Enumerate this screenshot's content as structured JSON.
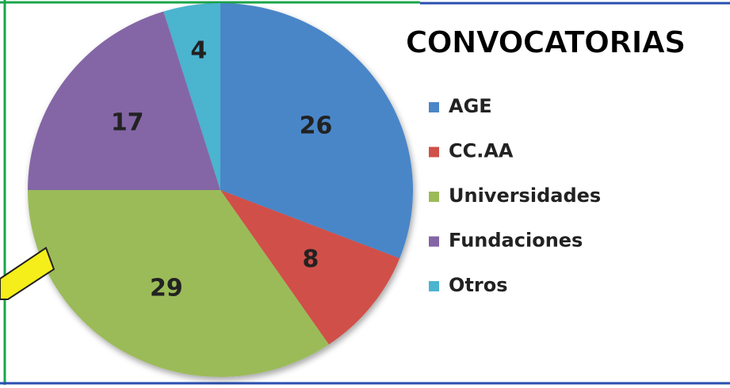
{
  "chart_data": {
    "type": "pie",
    "title": "CONVOCATORIAS",
    "categories": [
      "AGE",
      "CC.AA",
      "Universidades",
      "Fundaciones",
      "Otros"
    ],
    "values": [
      26,
      8,
      29,
      17,
      4
    ],
    "colors": [
      "#4a86c8",
      "#d0504a",
      "#9bbb59",
      "#8466a6",
      "#4bb4cf"
    ]
  }
}
